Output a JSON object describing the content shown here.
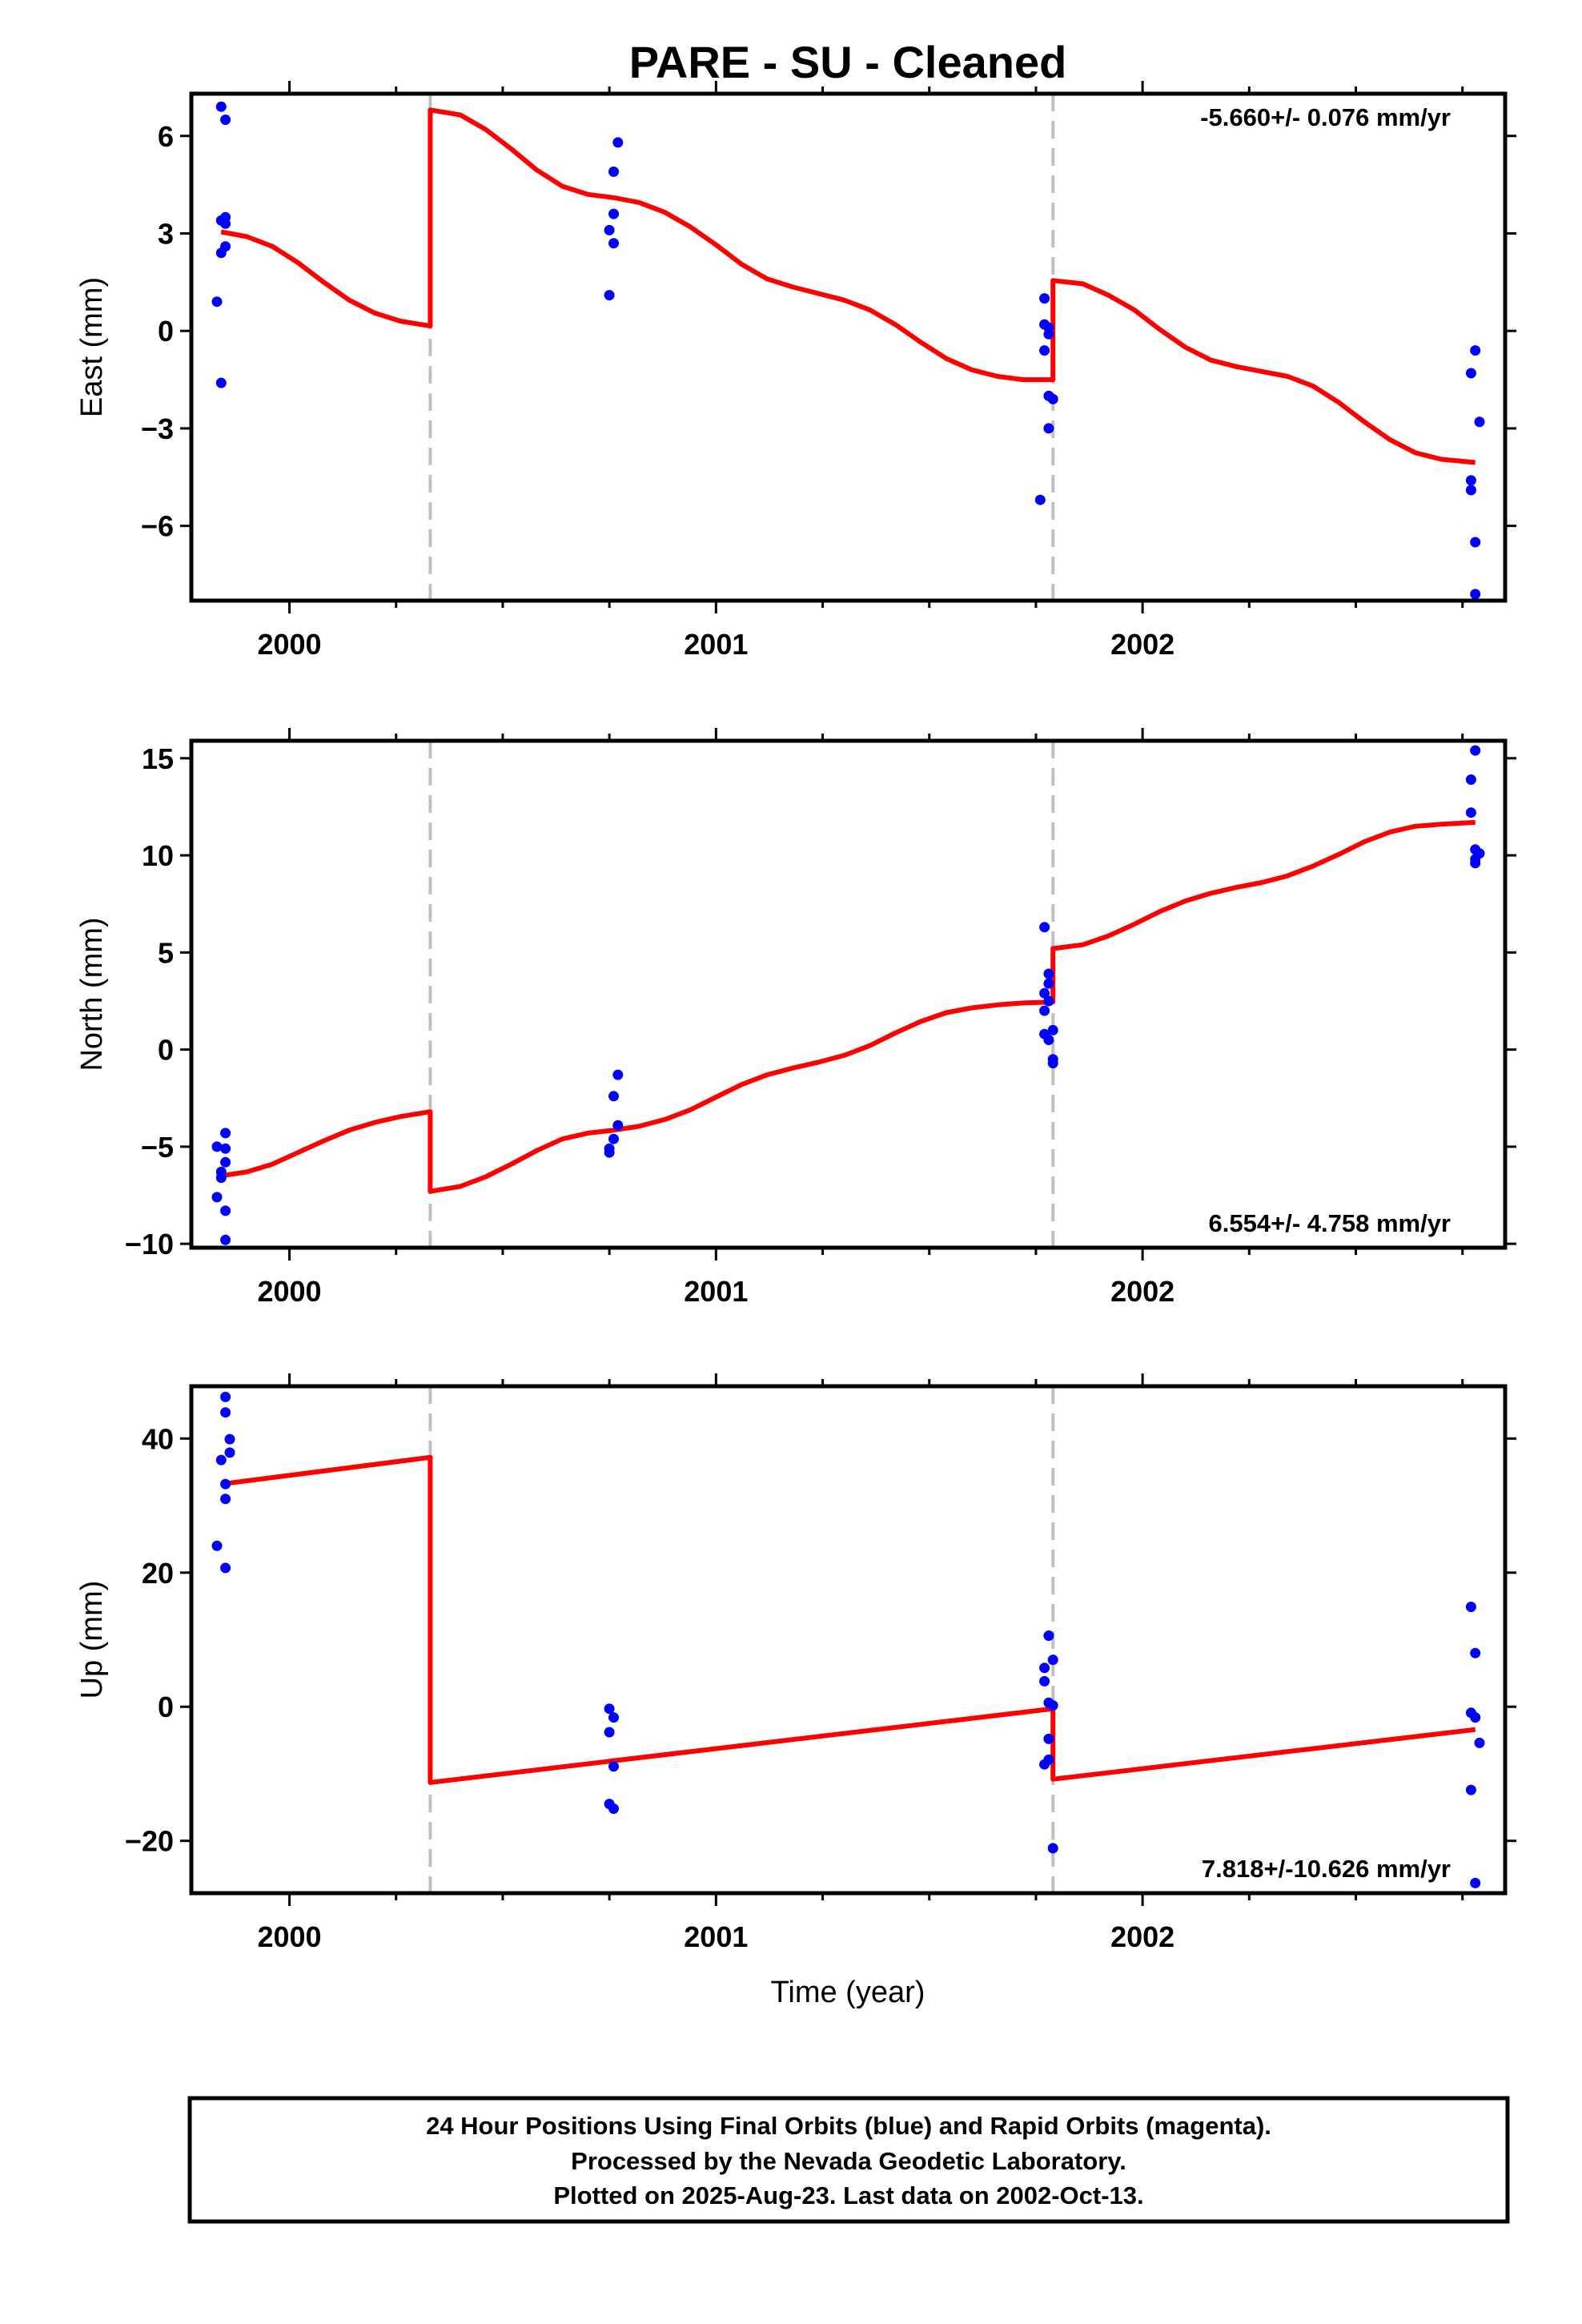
{
  "title": "PARE  - SU - Cleaned",
  "footer": {
    "lines": [
      "24 Hour Positions Using Final Orbits (blue) and Rapid Orbits (magenta).",
      "Processed by the Nevada Geodetic Laboratory.",
      "Plotted on 2025-Aug-23. Last data on 2002-Oct-13."
    ]
  },
  "colors": {
    "data_points": "#0000ff",
    "model_line": "#ff0000",
    "step_lines": "#c0c0c0",
    "frame": "#000000"
  },
  "chart_data": [
    {
      "type": "scatter",
      "name": "east",
      "ylabel": "East (mm)",
      "xlabel": "",
      "xlim": [
        1999.77,
        2002.85
      ],
      "ylim": [
        -8.3,
        7.3
      ],
      "yticks": [
        6,
        3,
        0,
        -3,
        -6
      ],
      "ytick_labels": [
        "6",
        "3",
        "0",
        "−3",
        "−6"
      ],
      "xticks": [
        2000,
        2001,
        2002
      ],
      "xtick_labels": [
        "2000",
        "2001",
        "2002"
      ],
      "grid": false,
      "rate_label": "-5.660+/- 0.076 mm/yr",
      "rate_position": "top-right",
      "steps": [
        2000.33,
        2001.79
      ],
      "points": [
        [
          1999.84,
          6.9
        ],
        [
          1999.85,
          6.5
        ],
        [
          1999.84,
          3.4
        ],
        [
          1999.85,
          3.5
        ],
        [
          1999.85,
          3.3
        ],
        [
          1999.84,
          2.4
        ],
        [
          1999.85,
          2.6
        ],
        [
          1999.83,
          0.9
        ],
        [
          1999.84,
          -1.6
        ],
        [
          2000.77,
          5.8
        ],
        [
          2000.76,
          4.9
        ],
        [
          2000.76,
          3.6
        ],
        [
          2000.75,
          3.1
        ],
        [
          2000.76,
          2.7
        ],
        [
          2000.75,
          1.1
        ],
        [
          2001.77,
          1.0
        ],
        [
          2001.77,
          0.2
        ],
        [
          2001.78,
          0.1
        ],
        [
          2001.78,
          -0.1
        ],
        [
          2001.77,
          -0.6
        ],
        [
          2001.78,
          -2.0
        ],
        [
          2001.79,
          -2.1
        ],
        [
          2001.78,
          -3.0
        ],
        [
          2001.76,
          -5.2
        ],
        [
          2002.78,
          -0.6
        ],
        [
          2002.77,
          -1.3
        ],
        [
          2002.79,
          -2.8
        ],
        [
          2002.77,
          -4.6
        ],
        [
          2002.77,
          -4.9
        ],
        [
          2002.78,
          -6.5
        ],
        [
          2002.78,
          -8.1
        ]
      ],
      "model": [
        [
          1999.84,
          3.05
        ],
        [
          1999.9,
          2.9
        ],
        [
          1999.96,
          2.6
        ],
        [
          2000.02,
          2.1
        ],
        [
          2000.08,
          1.5
        ],
        [
          2000.14,
          0.95
        ],
        [
          2000.2,
          0.55
        ],
        [
          2000.26,
          0.3
        ],
        [
          2000.33,
          0.15
        ],
        [
          2000.33,
          6.8
        ],
        [
          2000.4,
          6.65
        ],
        [
          2000.46,
          6.2
        ],
        [
          2000.52,
          5.6
        ],
        [
          2000.58,
          4.95
        ],
        [
          2000.64,
          4.45
        ],
        [
          2000.7,
          4.2
        ],
        [
          2000.76,
          4.1
        ],
        [
          2000.82,
          3.95
        ],
        [
          2000.88,
          3.65
        ],
        [
          2000.94,
          3.2
        ],
        [
          2001.0,
          2.65
        ],
        [
          2001.06,
          2.05
        ],
        [
          2001.12,
          1.6
        ],
        [
          2001.18,
          1.35
        ],
        [
          2001.24,
          1.15
        ],
        [
          2001.3,
          0.95
        ],
        [
          2001.36,
          0.65
        ],
        [
          2001.42,
          0.2
        ],
        [
          2001.48,
          -0.35
        ],
        [
          2001.54,
          -0.85
        ],
        [
          2001.6,
          -1.2
        ],
        [
          2001.66,
          -1.4
        ],
        [
          2001.72,
          -1.5
        ],
        [
          2001.79,
          -1.5
        ],
        [
          2001.79,
          1.55
        ],
        [
          2001.86,
          1.45
        ],
        [
          2001.92,
          1.1
        ],
        [
          2001.98,
          0.65
        ],
        [
          2002.04,
          0.05
        ],
        [
          2002.1,
          -0.5
        ],
        [
          2002.16,
          -0.9
        ],
        [
          2002.22,
          -1.1
        ],
        [
          2002.28,
          -1.25
        ],
        [
          2002.34,
          -1.4
        ],
        [
          2002.4,
          -1.7
        ],
        [
          2002.46,
          -2.2
        ],
        [
          2002.52,
          -2.8
        ],
        [
          2002.58,
          -3.35
        ],
        [
          2002.64,
          -3.75
        ],
        [
          2002.7,
          -3.95
        ],
        [
          2002.78,
          -4.05
        ]
      ]
    },
    {
      "type": "scatter",
      "name": "north",
      "ylabel": "North (mm)",
      "xlabel": "",
      "xlim": [
        1999.77,
        2002.85
      ],
      "ylim": [
        -10.2,
        15.9
      ],
      "yticks": [
        15,
        10,
        5,
        0,
        -5,
        -10
      ],
      "ytick_labels": [
        "15",
        "10",
        "5",
        "0",
        "−5",
        "−10"
      ],
      "xticks": [
        2000,
        2001,
        2002
      ],
      "xtick_labels": [
        "2000",
        "2001",
        "2002"
      ],
      "grid": false,
      "rate_label": "6.554+/- 4.758 mm/yr",
      "rate_position": "bottom-right",
      "steps": [
        2000.33,
        2001.79
      ],
      "points": [
        [
          1999.85,
          -4.3
        ],
        [
          1999.83,
          -5.0
        ],
        [
          1999.85,
          -5.1
        ],
        [
          1999.85,
          -5.8
        ],
        [
          1999.84,
          -6.3
        ],
        [
          1999.84,
          -6.6
        ],
        [
          1999.83,
          -7.6
        ],
        [
          1999.85,
          -8.3
        ],
        [
          1999.85,
          -9.8
        ],
        [
          2000.77,
          -1.3
        ],
        [
          2000.76,
          -2.4
        ],
        [
          2000.77,
          -3.9
        ],
        [
          2000.76,
          -4.6
        ],
        [
          2000.75,
          -5.1
        ],
        [
          2000.75,
          -5.3
        ],
        [
          2001.77,
          6.3
        ],
        [
          2001.78,
          3.9
        ],
        [
          2001.78,
          3.4
        ],
        [
          2001.77,
          2.9
        ],
        [
          2001.78,
          2.5
        ],
        [
          2001.77,
          2.0
        ],
        [
          2001.79,
          1.0
        ],
        [
          2001.77,
          0.8
        ],
        [
          2001.78,
          0.5
        ],
        [
          2001.79,
          -0.5
        ],
        [
          2001.79,
          -0.7
        ],
        [
          2002.78,
          15.4
        ],
        [
          2002.77,
          13.9
        ],
        [
          2002.77,
          12.2
        ],
        [
          2002.78,
          10.3
        ],
        [
          2002.79,
          10.1
        ],
        [
          2002.78,
          9.8
        ],
        [
          2002.78,
          9.6
        ]
      ],
      "model": [
        [
          1999.84,
          -6.5
        ],
        [
          1999.9,
          -6.3
        ],
        [
          1999.96,
          -5.9
        ],
        [
          2000.02,
          -5.3
        ],
        [
          2000.08,
          -4.7
        ],
        [
          2000.14,
          -4.15
        ],
        [
          2000.2,
          -3.75
        ],
        [
          2000.26,
          -3.45
        ],
        [
          2000.33,
          -3.2
        ],
        [
          2000.33,
          -7.3
        ],
        [
          2000.4,
          -7.05
        ],
        [
          2000.46,
          -6.55
        ],
        [
          2000.52,
          -5.9
        ],
        [
          2000.58,
          -5.2
        ],
        [
          2000.64,
          -4.6
        ],
        [
          2000.7,
          -4.3
        ],
        [
          2000.76,
          -4.15
        ],
        [
          2000.82,
          -3.95
        ],
        [
          2000.88,
          -3.6
        ],
        [
          2000.94,
          -3.1
        ],
        [
          2001.0,
          -2.45
        ],
        [
          2001.06,
          -1.8
        ],
        [
          2001.12,
          -1.3
        ],
        [
          2001.18,
          -0.95
        ],
        [
          2001.24,
          -0.65
        ],
        [
          2001.3,
          -0.3
        ],
        [
          2001.36,
          0.2
        ],
        [
          2001.42,
          0.85
        ],
        [
          2001.48,
          1.45
        ],
        [
          2001.54,
          1.9
        ],
        [
          2001.6,
          2.15
        ],
        [
          2001.66,
          2.3
        ],
        [
          2001.72,
          2.4
        ],
        [
          2001.79,
          2.45
        ],
        [
          2001.79,
          5.2
        ],
        [
          2001.86,
          5.4
        ],
        [
          2001.92,
          5.85
        ],
        [
          2001.98,
          6.45
        ],
        [
          2002.04,
          7.1
        ],
        [
          2002.1,
          7.65
        ],
        [
          2002.16,
          8.05
        ],
        [
          2002.22,
          8.35
        ],
        [
          2002.28,
          8.6
        ],
        [
          2002.34,
          8.95
        ],
        [
          2002.4,
          9.45
        ],
        [
          2002.46,
          10.05
        ],
        [
          2002.52,
          10.7
        ],
        [
          2002.58,
          11.2
        ],
        [
          2002.64,
          11.5
        ],
        [
          2002.7,
          11.6
        ],
        [
          2002.78,
          11.7
        ]
      ]
    },
    {
      "type": "scatter",
      "name": "up",
      "ylabel": "Up (mm)",
      "xlabel": "Time (year)",
      "xlim": [
        1999.77,
        2002.85
      ],
      "ylim": [
        -27.8,
        47.8
      ],
      "yticks": [
        40,
        20,
        0,
        -20
      ],
      "ytick_labels": [
        "40",
        "20",
        "0",
        "−20"
      ],
      "xticks": [
        2000,
        2001,
        2002
      ],
      "xtick_labels": [
        "2000",
        "2001",
        "2002"
      ],
      "grid": false,
      "rate_label": "7.818+/-10.626 mm/yr",
      "rate_position": "bottom-right",
      "steps": [
        2000.33,
        2001.79
      ],
      "points": [
        [
          1999.85,
          46.2
        ],
        [
          1999.85,
          43.9
        ],
        [
          1999.86,
          39.9
        ],
        [
          1999.86,
          37.9
        ],
        [
          1999.84,
          36.8
        ],
        [
          1999.85,
          33.2
        ],
        [
          1999.85,
          31.0
        ],
        [
          1999.83,
          24.0
        ],
        [
          1999.85,
          20.7
        ],
        [
          2000.75,
          -0.3
        ],
        [
          2000.76,
          -1.6
        ],
        [
          2000.75,
          -3.8
        ],
        [
          2000.76,
          -8.9
        ],
        [
          2000.75,
          -14.5
        ],
        [
          2000.76,
          -15.2
        ],
        [
          2001.78,
          10.6
        ],
        [
          2001.79,
          7.0
        ],
        [
          2001.77,
          5.8
        ],
        [
          2001.77,
          3.8
        ],
        [
          2001.78,
          0.6
        ],
        [
          2001.79,
          0.2
        ],
        [
          2001.78,
          -4.8
        ],
        [
          2001.78,
          -7.9
        ],
        [
          2001.77,
          -8.6
        ],
        [
          2001.79,
          -21.1
        ],
        [
          2002.77,
          14.9
        ],
        [
          2002.78,
          8.0
        ],
        [
          2002.77,
          -0.9
        ],
        [
          2002.78,
          -1.6
        ],
        [
          2002.79,
          -5.4
        ],
        [
          2002.77,
          -12.4
        ],
        [
          2002.78,
          -26.3
        ]
      ],
      "model": [
        [
          1999.84,
          33.2
        ],
        [
          2000.33,
          37.2
        ],
        [
          2000.33,
          -11.3
        ],
        [
          2001.79,
          -0.3
        ],
        [
          2001.79,
          0.2
        ],
        [
          2001.79,
          -10.8
        ],
        [
          2002.78,
          -3.4
        ]
      ]
    }
  ]
}
